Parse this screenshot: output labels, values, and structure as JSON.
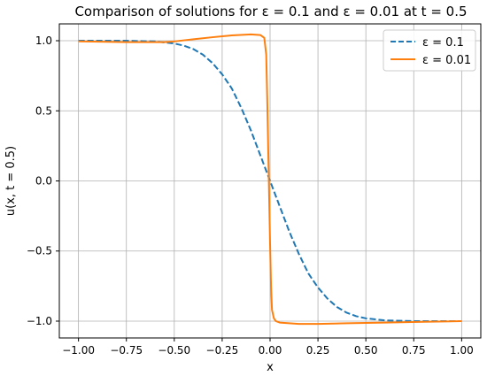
{
  "chart_data": {
    "type": "line",
    "title": "Comparison of solutions for ε = 0.1 and ε = 0.01 at t = 0.5",
    "xlabel": "x",
    "ylabel": "u(x, t = 0.5)",
    "xlim": [
      -1.1,
      1.1
    ],
    "ylim": [
      -1.12,
      1.12
    ],
    "xticks": [
      -1.0,
      -0.75,
      -0.5,
      -0.25,
      0.0,
      0.25,
      0.5,
      0.75,
      1.0
    ],
    "xtick_labels": [
      "−1.00",
      "−0.75",
      "−0.50",
      "−0.25",
      "0.00",
      "0.25",
      "0.50",
      "0.75",
      "1.00"
    ],
    "yticks": [
      -1.0,
      -0.5,
      0.0,
      0.5,
      1.0
    ],
    "ytick_labels": [
      "−1.0",
      "−0.5",
      "0.0",
      "0.5",
      "1.0"
    ],
    "grid": true,
    "legend_position": "top-right",
    "series": [
      {
        "name": "ε = 0.1",
        "color": "#1f77b4",
        "style": "dashed",
        "x": [
          -1.0,
          -0.75,
          -0.6,
          -0.5,
          -0.45,
          -0.4,
          -0.35,
          -0.3,
          -0.25,
          -0.2,
          -0.15,
          -0.1,
          -0.05,
          0.0,
          0.05,
          0.1,
          0.15,
          0.2,
          0.25,
          0.3,
          0.35,
          0.4,
          0.45,
          0.5,
          0.6,
          0.75,
          1.0
        ],
        "y": [
          1.0,
          1.0,
          0.995,
          0.98,
          0.965,
          0.94,
          0.9,
          0.84,
          0.76,
          0.66,
          0.52,
          0.36,
          0.18,
          0.0,
          -0.18,
          -0.36,
          -0.52,
          -0.66,
          -0.76,
          -0.84,
          -0.9,
          -0.94,
          -0.965,
          -0.98,
          -0.995,
          -1.0,
          -1.0
        ]
      },
      {
        "name": "ε = 0.01",
        "color": "#ff7f0e",
        "style": "solid",
        "x": [
          -1.0,
          -0.75,
          -0.55,
          -0.5,
          -0.4,
          -0.3,
          -0.2,
          -0.1,
          -0.05,
          -0.03,
          -0.02,
          -0.015,
          -0.01,
          -0.005,
          0.0,
          0.005,
          0.01,
          0.02,
          0.03,
          0.05,
          0.1,
          0.15,
          0.25,
          0.4,
          0.6,
          0.8,
          1.0
        ],
        "y": [
          0.995,
          0.99,
          0.99,
          0.995,
          1.01,
          1.025,
          1.038,
          1.045,
          1.04,
          1.02,
          0.9,
          0.6,
          0.25,
          -0.1,
          -0.45,
          -0.75,
          -0.92,
          -0.98,
          -1.0,
          -1.01,
          -1.015,
          -1.02,
          -1.02,
          -1.015,
          -1.01,
          -1.005,
          -1.0
        ]
      }
    ]
  }
}
